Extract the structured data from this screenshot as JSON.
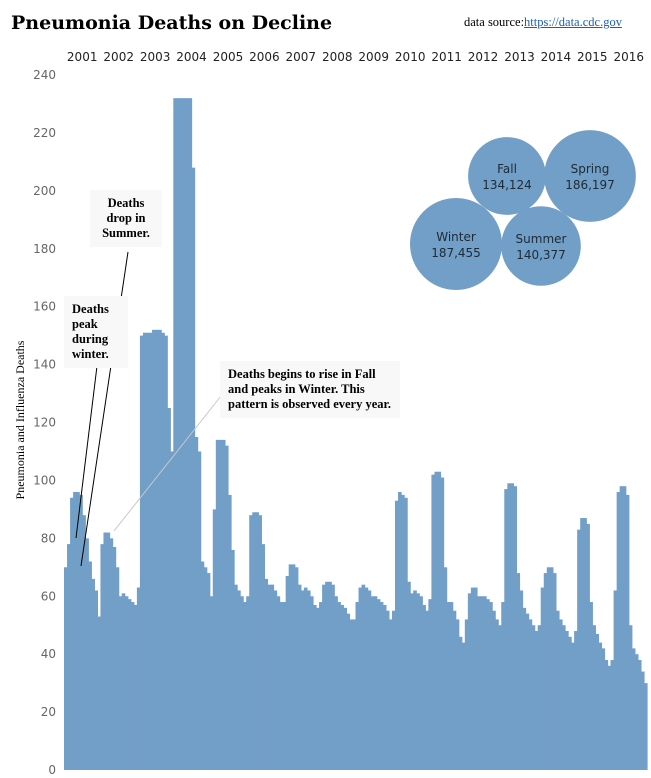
{
  "header": {
    "title": "Pneumonia Deaths on Decline",
    "source_prefix": "data source:",
    "source_link": "https://data.cdc.gov"
  },
  "colors": {
    "bar": "#729fc7",
    "bubble": "#729fc7"
  },
  "annotations": [
    {
      "id": "summer",
      "text": "Deaths drop in Summer."
    },
    {
      "id": "winter",
      "text": "Deaths peak during winter."
    },
    {
      "id": "pattern",
      "text": "Deaths begins to rise in Fall and peaks in Winter. This pattern is observed every year."
    }
  ],
  "chart_data": [
    {
      "type": "area",
      "title": "Pneumonia Deaths on Decline",
      "ylabel": "Pneumonia and Influenza Deaths",
      "xlabel": "",
      "ylim": [
        0,
        240
      ],
      "yticks": [
        0,
        20,
        40,
        60,
        80,
        100,
        120,
        140,
        160,
        180,
        200,
        220,
        240
      ],
      "grid": false,
      "years": [
        "2001",
        "2002",
        "2003",
        "2004",
        "2005",
        "2006",
        "2007",
        "2008",
        "2009",
        "2010",
        "2011",
        "2012",
        "2013",
        "2014",
        "2015",
        "2016"
      ],
      "series": [
        {
          "values": [
            70,
            78,
            94,
            96,
            96,
            95,
            88,
            80,
            72,
            66,
            62,
            53,
            78,
            82,
            82,
            80,
            77,
            70,
            60,
            61,
            60,
            59,
            58,
            57,
            63,
            150,
            151,
            151,
            151,
            152,
            152,
            152,
            151,
            150,
            125,
            110,
            232,
            232,
            232,
            232,
            232,
            232,
            208,
            115,
            110,
            72,
            70,
            68,
            60,
            90,
            114,
            114,
            114,
            112,
            95,
            76,
            64,
            62,
            60,
            58,
            60,
            88,
            89,
            89,
            88,
            78,
            66,
            64,
            64,
            62,
            60,
            58,
            58,
            67,
            71,
            71,
            70,
            64,
            62,
            63,
            62,
            60,
            57,
            56,
            58,
            64,
            65,
            65,
            64,
            60,
            58,
            57,
            56,
            54,
            52,
            52,
            58,
            63,
            64,
            63,
            62,
            60,
            60,
            59,
            58,
            57,
            55,
            52,
            55,
            93,
            96,
            95,
            94,
            65,
            61,
            62,
            61,
            60,
            57,
            55,
            59,
            102,
            103,
            103,
            101,
            70,
            58,
            58,
            55,
            52,
            46,
            44,
            52,
            61,
            63,
            63,
            60,
            60,
            60,
            59,
            58,
            55,
            52,
            50,
            58,
            97,
            99,
            99,
            98,
            68,
            62,
            56,
            54,
            52,
            50,
            48,
            50,
            63,
            68,
            70,
            70,
            68,
            55,
            52,
            50,
            48,
            46,
            44,
            48,
            83,
            87,
            87,
            85,
            58,
            50,
            47,
            44,
            42,
            38,
            36,
            38,
            62,
            96,
            98,
            98,
            95,
            50,
            42,
            40,
            38,
            34,
            30
          ]
        }
      ]
    },
    {
      "type": "bubble",
      "categories": [
        "Fall",
        "Spring",
        "Winter",
        "Summer"
      ],
      "values": [
        134124,
        186197,
        187455,
        140377
      ],
      "labels": [
        "134,124",
        "186,197",
        "187,455",
        "140,377"
      ]
    }
  ]
}
